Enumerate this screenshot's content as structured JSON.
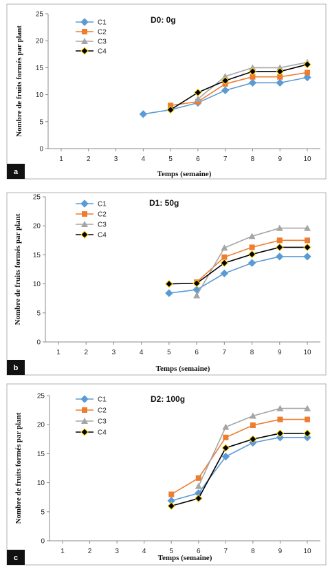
{
  "chart_data": [
    {
      "type": "line",
      "panel_label": "a",
      "title": "D0: 0g",
      "xlabel": "Temps (semaine)",
      "ylabel": "Nombre de fruits formés par plant",
      "categories": [
        "1",
        "2",
        "3",
        "4",
        "5",
        "6",
        "7",
        "8",
        "9",
        "10"
      ],
      "ylim": [
        0,
        25
      ],
      "yticks": [
        0,
        5,
        10,
        15,
        20,
        25
      ],
      "grid": false,
      "legend_position": "top-left",
      "series": [
        {
          "name": "C1",
          "color": "#5b9bd5",
          "marker": "diamond",
          "x": [
            4,
            5,
            6,
            7,
            8,
            9,
            10
          ],
          "values": [
            6.4,
            7.2,
            8.5,
            10.8,
            12.2,
            12.2,
            13.2
          ]
        },
        {
          "name": "C2",
          "color": "#ed7d31",
          "marker": "square",
          "x": [
            5,
            6,
            7,
            8,
            9,
            10
          ],
          "values": [
            8.0,
            8.7,
            12.0,
            13.3,
            13.3,
            14.1
          ]
        },
        {
          "name": "C3",
          "color": "#a5a5a5",
          "marker": "triangle",
          "x": [
            6,
            7,
            8,
            9,
            10
          ],
          "values": [
            9.2,
            13.4,
            15.0,
            15.0,
            16.0
          ]
        },
        {
          "name": "C4",
          "color": "#000000",
          "marker": "diamond",
          "x": [
            5,
            6,
            7,
            8,
            9,
            10
          ],
          "values": [
            7.2,
            10.4,
            12.6,
            14.3,
            14.3,
            15.6
          ]
        }
      ]
    },
    {
      "type": "line",
      "panel_label": "b",
      "title": "D1: 50g",
      "xlabel": "Temps (semaine)",
      "ylabel": "Nombre de fruits formés par plant",
      "categories": [
        "1",
        "2",
        "3",
        "4",
        "5",
        "6",
        "7",
        "8",
        "9",
        "10"
      ],
      "ylim": [
        0,
        25
      ],
      "yticks": [
        0,
        5,
        10,
        15,
        20,
        25
      ],
      "grid": false,
      "legend_position": "top-left",
      "series": [
        {
          "name": "C1",
          "color": "#5b9bd5",
          "marker": "diamond",
          "x": [
            5,
            6,
            7,
            8,
            9,
            10
          ],
          "values": [
            8.4,
            9.0,
            11.8,
            13.6,
            14.7,
            14.7
          ]
        },
        {
          "name": "C2",
          "color": "#ed7d31",
          "marker": "square",
          "x": [
            6,
            7,
            8,
            9,
            10
          ],
          "values": [
            10.3,
            14.6,
            16.3,
            17.5,
            17.5
          ]
        },
        {
          "name": "C3",
          "color": "#a5a5a5",
          "marker": "triangle",
          "x": [
            6,
            7,
            8,
            9,
            10
          ],
          "values": [
            8.0,
            16.2,
            18.2,
            19.6,
            19.6
          ]
        },
        {
          "name": "C4",
          "color": "#000000",
          "marker": "diamond",
          "x": [
            5,
            6,
            7,
            8,
            9,
            10
          ],
          "values": [
            10.0,
            10.1,
            13.6,
            15.1,
            16.3,
            16.3
          ]
        }
      ]
    },
    {
      "type": "line",
      "panel_label": "c",
      "title": "D2: 100g",
      "xlabel": "Temps (semaine)",
      "ylabel": "Nombre de fruits formés par plant",
      "categories": [
        "1",
        "2",
        "3",
        "4",
        "5",
        "6",
        "7",
        "8",
        "9",
        "10"
      ],
      "ylim": [
        0,
        25
      ],
      "yticks": [
        0,
        5,
        10,
        15,
        20,
        25
      ],
      "grid": false,
      "legend_position": "top-left",
      "series": [
        {
          "name": "C1",
          "color": "#5b9bd5",
          "marker": "diamond",
          "x": [
            5,
            6,
            7,
            8,
            9,
            10
          ],
          "values": [
            6.9,
            8.2,
            14.5,
            16.9,
            17.8,
            17.8
          ]
        },
        {
          "name": "C2",
          "color": "#ed7d31",
          "marker": "square",
          "x": [
            5,
            6,
            7,
            8,
            9,
            10
          ],
          "values": [
            8.0,
            10.8,
            17.8,
            19.9,
            20.9,
            20.9
          ]
        },
        {
          "name": "C3",
          "color": "#a5a5a5",
          "marker": "triangle",
          "x": [
            6,
            7,
            8,
            9,
            10
          ],
          "values": [
            9.4,
            19.6,
            21.5,
            22.8,
            22.8
          ]
        },
        {
          "name": "C4",
          "color": "#000000",
          "marker": "diamond",
          "x": [
            5,
            6,
            7,
            8,
            9,
            10
          ],
          "values": [
            6.0,
            7.3,
            16.0,
            17.5,
            18.5,
            18.5
          ]
        }
      ]
    }
  ]
}
